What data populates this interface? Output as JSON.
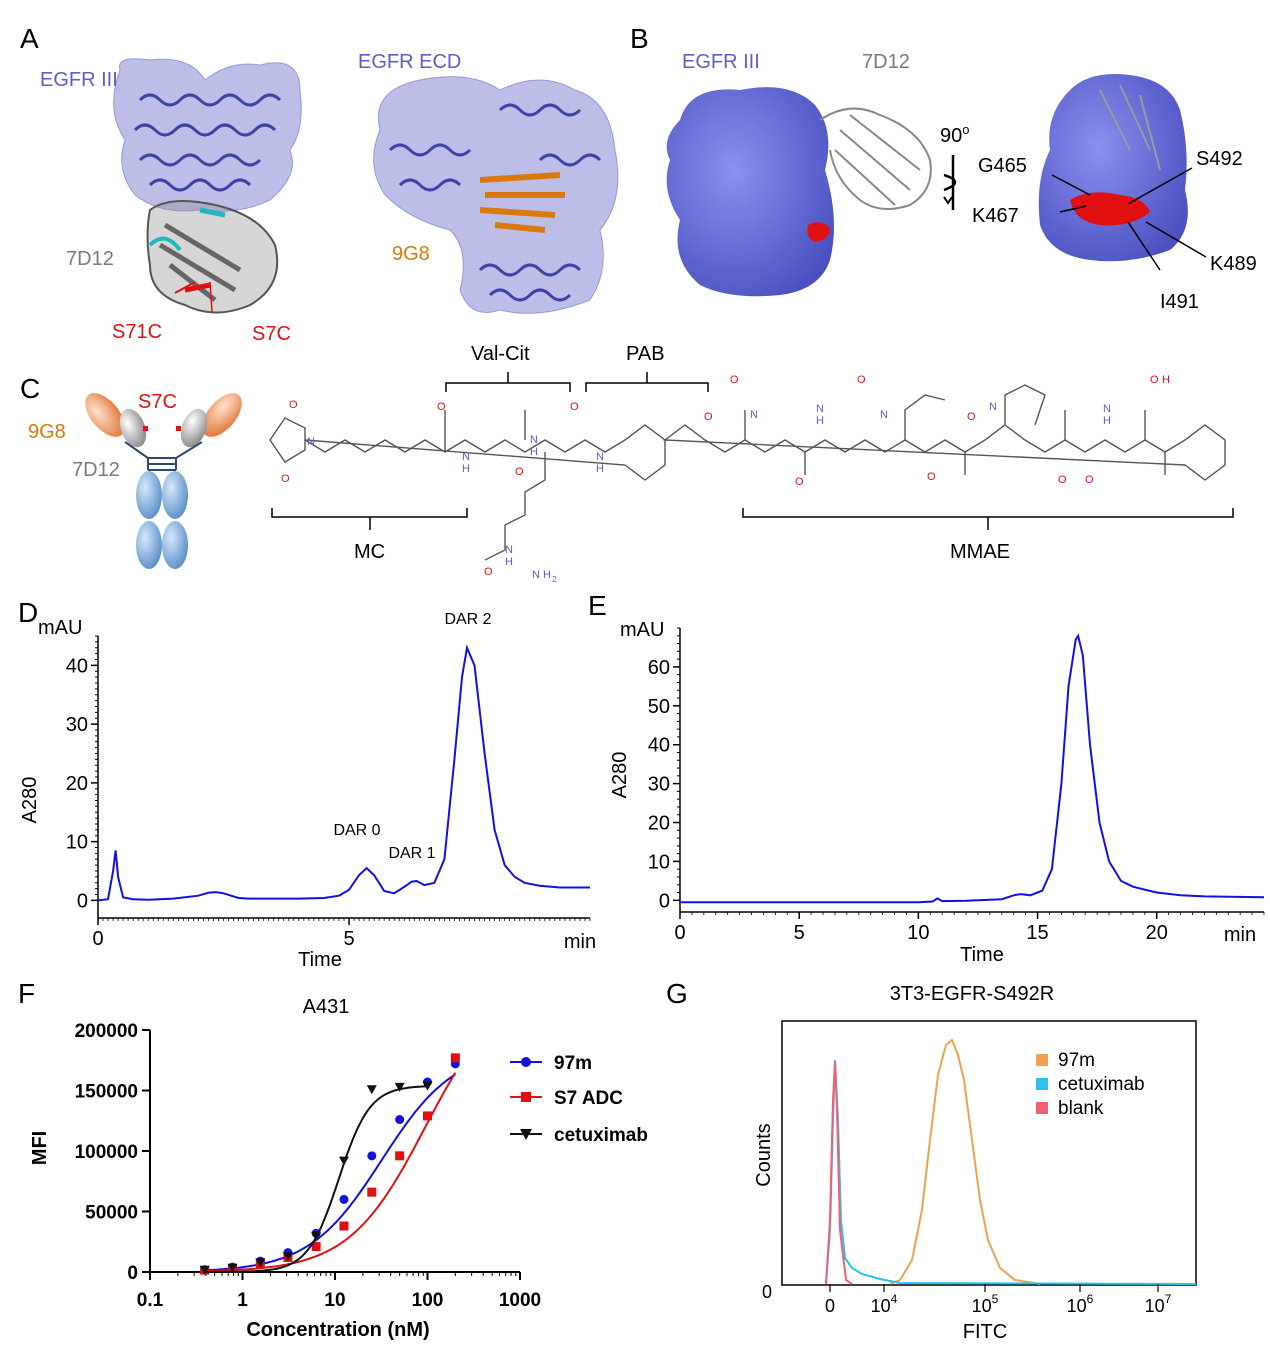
{
  "panels": {
    "A": {
      "letter": "A",
      "left_label": "EGFR III",
      "right_label": "EGFR ECD",
      "antibody_label": "7D12",
      "mutation_1": "S71C",
      "mutation_2": "S7C",
      "nanobody_label": "9G8",
      "colors": {
        "egfr": "#6a6fc9",
        "nanobody_7d12": "#7a7a7a",
        "nanobody_9g8": "#d9790a",
        "mutation": "#e01010",
        "cdr": "#20b8c0"
      }
    },
    "B": {
      "letter": "B",
      "egfr_label": "EGFR III",
      "antibody_label": "7D12",
      "rotation": "90",
      "rotation_sup": "o",
      "residues": [
        "G465",
        "S492",
        "K467",
        "K489",
        "I491"
      ]
    },
    "C": {
      "letter": "C",
      "s7c": "S7C",
      "g9g8": "9G8",
      "d7d12": "7D12",
      "bracket_valcit": "Val-Cit",
      "bracket_pab": "PAB",
      "bracket_mc": "MC",
      "bracket_mmae": "MMAE",
      "atoms": [
        "O",
        "O",
        "N",
        "O",
        "N",
        "H",
        "O",
        "N",
        "H",
        "O",
        "N",
        "H",
        "O",
        "O",
        "N",
        "O",
        "N",
        "H",
        "O",
        "N",
        "O",
        "O",
        "N",
        "O",
        "O",
        "N",
        "H",
        "O",
        "H",
        "N",
        "H",
        "O",
        "N",
        "H",
        "2"
      ]
    },
    "D": {
      "letter": "D",
      "y_unit": "mAU",
      "ylabel": "A280",
      "xlabel": "Time",
      "x_unit": "min",
      "x_ticks": [
        "0",
        "5"
      ],
      "y_ticks": [
        "0",
        "10",
        "20",
        "30",
        "40"
      ],
      "annotations": [
        "DAR 0",
        "DAR 1",
        "DAR 2"
      ]
    },
    "E": {
      "letter": "E",
      "y_unit": "mAU",
      "ylabel": "A280",
      "xlabel": "Time",
      "x_unit": "min",
      "x_ticks": [
        "0",
        "5",
        "10",
        "15",
        "20"
      ],
      "y_ticks": [
        "0",
        "10",
        "20",
        "30",
        "40",
        "50",
        "60"
      ]
    },
    "F": {
      "letter": "F",
      "title": "A431",
      "ylabel": "MFI",
      "xlabel": "Concentration (nM)",
      "x_ticks": [
        "0.1",
        "1",
        "10",
        "100",
        "1000"
      ],
      "y_ticks": [
        "0",
        "50000",
        "100000",
        "150000",
        "200000"
      ],
      "legend": [
        "97m",
        "S7 ADC",
        "cetuximab"
      ]
    },
    "G": {
      "letter": "G",
      "title": "3T3-EGFR-S492R",
      "ylabel": "Counts",
      "xlabel": "FITC",
      "y_tick": "0",
      "x_ticks": [
        "0",
        "10",
        "10",
        "10",
        "10"
      ],
      "x_tick_exps": [
        "",
        "4",
        "5",
        "6",
        "7"
      ],
      "legend": [
        "97m",
        "cetuximab",
        "blank"
      ]
    }
  },
  "chart_data": [
    {
      "type": "line",
      "panel": "D",
      "x_unit": "min",
      "y_unit": "mAU",
      "xlim": [
        0,
        9.8
      ],
      "ylim": [
        -3,
        45
      ],
      "series": [
        {
          "x": [
            0,
            0.2,
            0.3,
            0.35,
            0.4,
            0.5,
            0.7,
            1.0,
            1.5,
            2.0,
            2.2,
            2.35,
            2.5,
            2.8,
            3.0,
            3.5,
            4.0,
            4.5,
            4.8,
            5.0,
            5.2,
            5.35,
            5.5,
            5.7,
            5.9,
            6.1,
            6.25,
            6.35,
            6.5,
            6.7,
            6.9,
            7.1,
            7.25,
            7.35,
            7.5,
            7.7,
            7.9,
            8.1,
            8.3,
            8.5,
            8.8,
            9.2,
            9.8
          ],
          "y": [
            0,
            0.2,
            5,
            8.5,
            4,
            0.5,
            0.2,
            0.1,
            0.3,
            0.8,
            1.3,
            1.4,
            1.2,
            0.4,
            0.3,
            0.3,
            0.3,
            0.4,
            0.8,
            1.8,
            4.3,
            5.5,
            4.3,
            1.6,
            1.2,
            2.3,
            3.2,
            3.3,
            2.6,
            3.0,
            7.0,
            24,
            38,
            43,
            40,
            25,
            12,
            6,
            4,
            3,
            2.5,
            2.2,
            2.2
          ]
        }
      ]
    },
    {
      "type": "line",
      "panel": "E",
      "x_unit": "min",
      "y_unit": "mAU",
      "xlim": [
        0,
        24.5
      ],
      "ylim": [
        -3,
        70
      ],
      "series": [
        {
          "x": [
            0,
            5,
            10,
            10.6,
            10.8,
            11.0,
            12,
            13.5,
            14.0,
            14.3,
            14.7,
            15.2,
            15.6,
            16.0,
            16.3,
            16.6,
            16.7,
            16.9,
            17.2,
            17.6,
            18.0,
            18.5,
            19.0,
            20.0,
            21.0,
            22.0,
            24.5
          ],
          "y": [
            -0.5,
            -0.5,
            -0.5,
            -0.3,
            0.5,
            -0.2,
            -0.1,
            0.3,
            1.3,
            1.6,
            1.3,
            2.5,
            8,
            30,
            55,
            67,
            68,
            63,
            40,
            20,
            10,
            5,
            3.5,
            2.0,
            1.3,
            1.0,
            0.8
          ]
        }
      ]
    },
    {
      "type": "scatter",
      "panel": "F",
      "title": "A431",
      "xlabel": "Concentration (nM)",
      "ylabel": "MFI",
      "x_scale": "log",
      "xlim": [
        0.1,
        1000
      ],
      "ylim": [
        0,
        200000
      ],
      "legend_position": "right",
      "series": [
        {
          "name": "97m",
          "color": "#1010e0",
          "marker": "circle",
          "x": [
            0.39,
            0.78,
            1.56,
            3.1,
            6.25,
            12.5,
            25,
            50,
            100,
            200
          ],
          "y": [
            2000,
            4000,
            9000,
            16000,
            32000,
            60000,
            96000,
            126000,
            157000,
            172000
          ]
        },
        {
          "name": "S7 ADC",
          "color": "#e01010",
          "marker": "square",
          "x": [
            0.39,
            0.78,
            1.56,
            3.1,
            6.25,
            12.5,
            25,
            50,
            100,
            200
          ],
          "y": [
            1500,
            3000,
            7000,
            12000,
            21000,
            38000,
            66000,
            96000,
            129000,
            177000
          ]
        },
        {
          "name": "cetuximab",
          "color": "#111111",
          "marker": "triangle-down",
          "x": [
            0.39,
            0.78,
            1.56,
            3.1,
            6.25,
            12.5,
            25,
            50,
            100
          ],
          "y": [
            1800,
            3500,
            8000,
            13000,
            30000,
            92000,
            151000,
            153000,
            154000
          ]
        }
      ]
    },
    {
      "type": "area",
      "panel": "G",
      "title": "3T3-EGFR-S492R",
      "xlabel": "FITC",
      "ylabel": "Counts",
      "legend_position": "top-right",
      "series": [
        {
          "name": "97m",
          "color": "#f0a050"
        },
        {
          "name": "cetuximab",
          "color": "#30c0f0"
        },
        {
          "name": "blank",
          "color": "#f06070"
        }
      ]
    }
  ]
}
